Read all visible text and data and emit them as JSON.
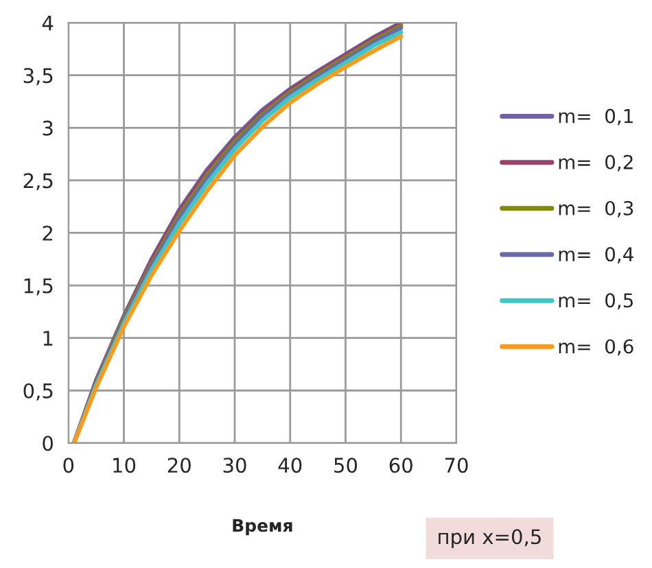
{
  "chart_data": {
    "type": "line",
    "xlabel": "Время",
    "x": [
      1,
      5,
      10,
      15,
      20,
      25,
      30,
      35,
      40,
      45,
      50,
      55,
      60
    ],
    "series": [
      {
        "name": "m=  0,1",
        "color": "#7060a8",
        "values": [
          0,
          0.6,
          1.21,
          1.75,
          2.22,
          2.6,
          2.91,
          3.17,
          3.37,
          3.54,
          3.7,
          3.86,
          4.0
        ]
      },
      {
        "name": "m=  0,2",
        "color": "#9e3f6e",
        "values": [
          0,
          0.59,
          1.2,
          1.74,
          2.2,
          2.58,
          2.89,
          3.15,
          3.36,
          3.53,
          3.69,
          3.85,
          3.99
        ]
      },
      {
        "name": "m=  0,3",
        "color": "#7f8a10",
        "values": [
          0,
          0.58,
          1.19,
          1.71,
          2.17,
          2.55,
          2.87,
          3.13,
          3.34,
          3.51,
          3.67,
          3.83,
          3.97
        ]
      },
      {
        "name": "m=  0,4",
        "color": "#6a6aa8",
        "values": [
          0,
          0.57,
          1.17,
          1.69,
          2.14,
          2.52,
          2.84,
          3.11,
          3.32,
          3.49,
          3.65,
          3.81,
          3.95
        ]
      },
      {
        "name": "m=  0,5",
        "color": "#3cc8c8",
        "values": [
          0,
          0.55,
          1.14,
          1.65,
          2.09,
          2.47,
          2.8,
          3.07,
          3.29,
          3.46,
          3.62,
          3.78,
          3.91
        ]
      },
      {
        "name": "m=  0,6",
        "color": "#f79a1e",
        "values": [
          0,
          0.53,
          1.11,
          1.6,
          2.02,
          2.4,
          2.74,
          3.01,
          3.24,
          3.42,
          3.58,
          3.73,
          3.87
        ]
      }
    ],
    "xlim": [
      0,
      70
    ],
    "xticks": [
      0,
      10,
      20,
      30,
      40,
      50,
      60,
      70
    ],
    "ylim": [
      0,
      4
    ],
    "yticks": [
      0,
      {
        "value": 0.5,
        "label": "0,5"
      },
      1,
      {
        "value": 1.5,
        "label": "1,5"
      },
      2,
      {
        "value": 2.5,
        "label": "2,5"
      },
      3,
      {
        "value": 3.5,
        "label": "3,5"
      },
      4
    ],
    "grid": true,
    "legend": "right",
    "marker": "none",
    "line_style": "solid",
    "annotations": [
      "при x=0,5"
    ]
  }
}
